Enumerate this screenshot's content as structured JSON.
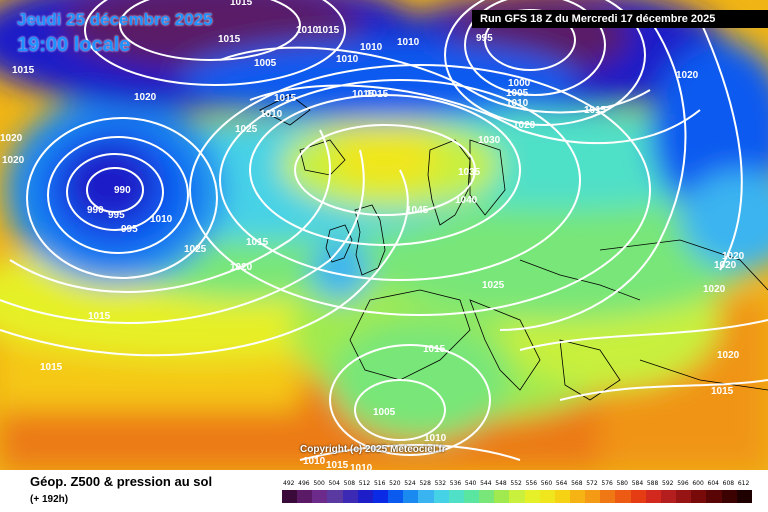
{
  "header": {
    "date_line": "Jeudi 25 décembre 2025",
    "local_time": "19:00 locale",
    "run_info": "Run GFS 18 Z du Mercredi 17 décembre 2025"
  },
  "footer": {
    "title": "Géop. Z500 & pression au sol",
    "lead": "(+ 192h)",
    "copyright": "Copyright (c) 2025 Meteociel.fr"
  },
  "legend": {
    "values": [
      "492",
      "496",
      "500",
      "504",
      "508",
      "512",
      "516",
      "520",
      "524",
      "528",
      "532",
      "536",
      "540",
      "544",
      "548",
      "552",
      "556",
      "560",
      "564",
      "568",
      "572",
      "576",
      "580",
      "584",
      "588",
      "592",
      "596",
      "600",
      "604",
      "608",
      "612"
    ],
    "colors": [
      "#3a0b3a",
      "#5a1a66",
      "#6c2a8a",
      "#5a3aa0",
      "#3c2ab4",
      "#1e1ec8",
      "#0a2ae6",
      "#0a5af0",
      "#1a8af0",
      "#3ab4f0",
      "#46d2e6",
      "#50e0c8",
      "#5ae6a0",
      "#78e678",
      "#a0ea50",
      "#c8f03c",
      "#e6f028",
      "#f0e61e",
      "#f5d214",
      "#f5b414",
      "#f59a14",
      "#f07814",
      "#ec5a14",
      "#e63c14",
      "#d2281e",
      "#b41e1e",
      "#961414",
      "#780a0a",
      "#5a0505",
      "#3c0202",
      "#1e0000"
    ]
  },
  "map": {
    "isobar_labels": [
      {
        "text": "1015"
      },
      {
        "text": "1015"
      },
      {
        "text": "1015"
      },
      {
        "text": "1020"
      },
      {
        "text": "1020"
      },
      {
        "text": "1020"
      },
      {
        "text": "1015"
      },
      {
        "text": "1005"
      },
      {
        "text": "1010"
      },
      {
        "text": "1010"
      },
      {
        "text": "1010"
      },
      {
        "text": "1010"
      },
      {
        "text": "1015"
      },
      {
        "text": "1015"
      },
      {
        "text": "1025"
      },
      {
        "text": "1010"
      },
      {
        "text": "1015"
      },
      {
        "text": "995"
      },
      {
        "text": "1000"
      },
      {
        "text": "1005"
      },
      {
        "text": "1010"
      },
      {
        "text": "1015"
      },
      {
        "text": "1020"
      },
      {
        "text": "1020"
      },
      {
        "text": "1030"
      },
      {
        "text": "1035"
      },
      {
        "text": "1040"
      },
      {
        "text": "1045"
      },
      {
        "text": "990"
      },
      {
        "text": "990"
      },
      {
        "text": "995"
      },
      {
        "text": "995"
      },
      {
        "text": "1010"
      },
      {
        "text": "1025"
      },
      {
        "text": "1015"
      },
      {
        "text": "1020"
      },
      {
        "text": "1015"
      },
      {
        "text": "1015"
      },
      {
        "text": "1025"
      },
      {
        "text": "1015"
      },
      {
        "text": "1005"
      },
      {
        "text": "1010"
      },
      {
        "text": "1010"
      },
      {
        "text": "1015"
      },
      {
        "text": "1010"
      },
      {
        "text": "1020"
      },
      {
        "text": "1020"
      },
      {
        "text": "1020"
      },
      {
        "text": "1020"
      },
      {
        "text": "1015"
      }
    ]
  }
}
